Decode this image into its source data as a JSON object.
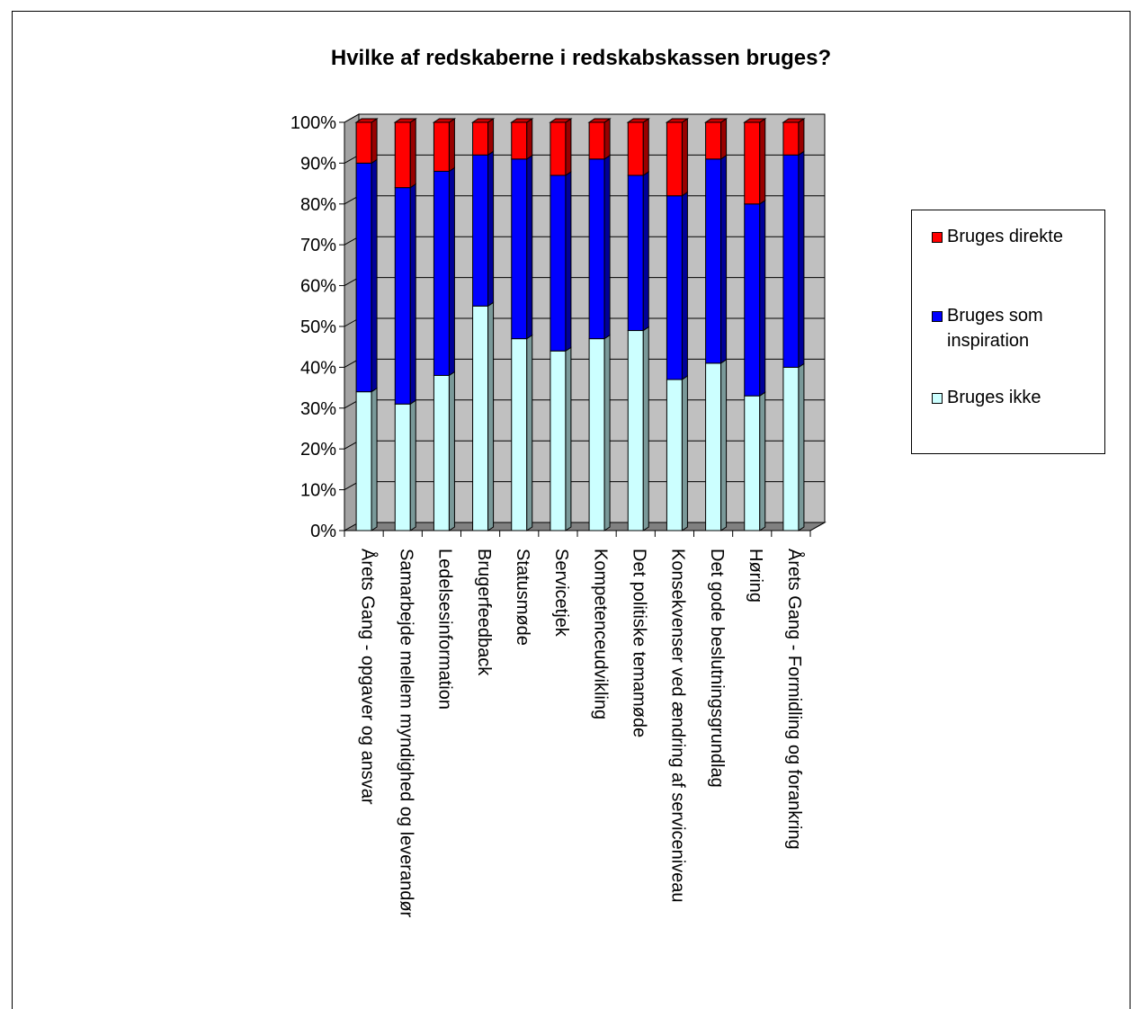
{
  "chart_data": {
    "type": "bar",
    "stacked": true,
    "percent_stacked": true,
    "three_d": true,
    "title": "Hvilke af redskaberne i redskabskassen bruges?",
    "categories": [
      "Årets Gang - opgaver og ansvar",
      "Samarbejde mellem myndighed og leverandør",
      "Ledelsesinformation",
      "Brugerfeedback",
      "Statusmøde",
      "Servicetjek",
      "Kompetenceudvikling",
      "Det politiske temamøde",
      "Konsekvenser ved ændring af serviceniveau",
      "Det gode beslutningsgrundlag",
      "Høring",
      "Årets Gang - Formidling og forankring"
    ],
    "series": [
      {
        "name": "Bruges ikke",
        "color": "#ccffff",
        "values": [
          34,
          31,
          38,
          55,
          47,
          44,
          47,
          49,
          37,
          41,
          33,
          40
        ]
      },
      {
        "name": "Bruges som inspiration",
        "color": "#0000ff",
        "values": [
          56,
          53,
          50,
          37,
          44,
          43,
          44,
          38,
          45,
          50,
          47,
          52
        ]
      },
      {
        "name": "Bruges direkte",
        "color": "#ff0000",
        "values": [
          10,
          16,
          12,
          8,
          9,
          13,
          9,
          13,
          18,
          9,
          20,
          8
        ]
      }
    ],
    "yticks": [
      "0%",
      "10%",
      "20%",
      "30%",
      "40%",
      "50%",
      "60%",
      "70%",
      "80%",
      "90%",
      "100%"
    ],
    "ylim": [
      0,
      100
    ],
    "grid": true,
    "legend": {
      "position": "right",
      "entries": [
        "Bruges direkte",
        "Bruges som\ninspiration",
        "Bruges ikke"
      ],
      "colors": [
        "#ff0000",
        "#0000ff",
        "#ccffff"
      ]
    },
    "colors": {
      "wall": "#c0c0c0",
      "floor": "#808080",
      "grid": "#000000"
    }
  }
}
